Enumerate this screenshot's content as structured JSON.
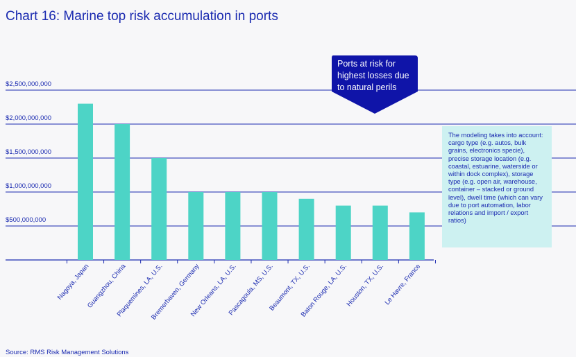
{
  "title": "Chart 16: Marine top risk accumulation in ports",
  "callout_text": "Ports at risk for highest losses due to natural perils",
  "note_text": "The modeling takes into account: cargo type (e.g. autos, bulk grains, electronics specie), precise storage location (e.g. coastal, estuarine, waterside or within dock complex), storage type (e.g. open air, warehouse, container – stacked or ground level), dwell time (which can vary due to port automation, labor relations and import / export ratios)",
  "source": "Source: RMS Risk Management Solutions",
  "colors": {
    "title": "#1a2ab0",
    "bar": "#4dd4c6",
    "callout_bg": "#0f14a8",
    "note_bg": "#cdf1f1",
    "axis": "#1a2ab0"
  },
  "chart_data": {
    "type": "bar",
    "categories": [
      "Nagoya, Japan",
      "Guangzhou, China",
      "Plaquemines, LA, U.S.",
      "Bremerhaven, Germany",
      "New Orleans, LA, U.S.",
      "Pascagoula, MS, U.S.",
      "Beaumont, TX, U.S.",
      "Baton Rouge, LA, U.S.",
      "Houston, TX, U.S.",
      "Le Havre, France"
    ],
    "values": [
      2300000000,
      2000000000,
      1500000000,
      1000000000,
      1000000000,
      1000000000,
      900000000,
      800000000,
      800000000,
      700000000
    ],
    "y_ticks": [
      500000000,
      1000000000,
      1500000000,
      2000000000,
      2500000000
    ],
    "y_tick_labels": [
      "$500,000,000",
      "$1,000,000,000",
      "$1,500,000,000",
      "$2,000,000,000",
      "$2,500,000,000"
    ],
    "ylim": [
      0,
      2500000000
    ],
    "title": "Chart 16: Marine top risk accumulation in ports",
    "xlabel": "",
    "ylabel": "",
    "grid": true,
    "legend": "none"
  }
}
